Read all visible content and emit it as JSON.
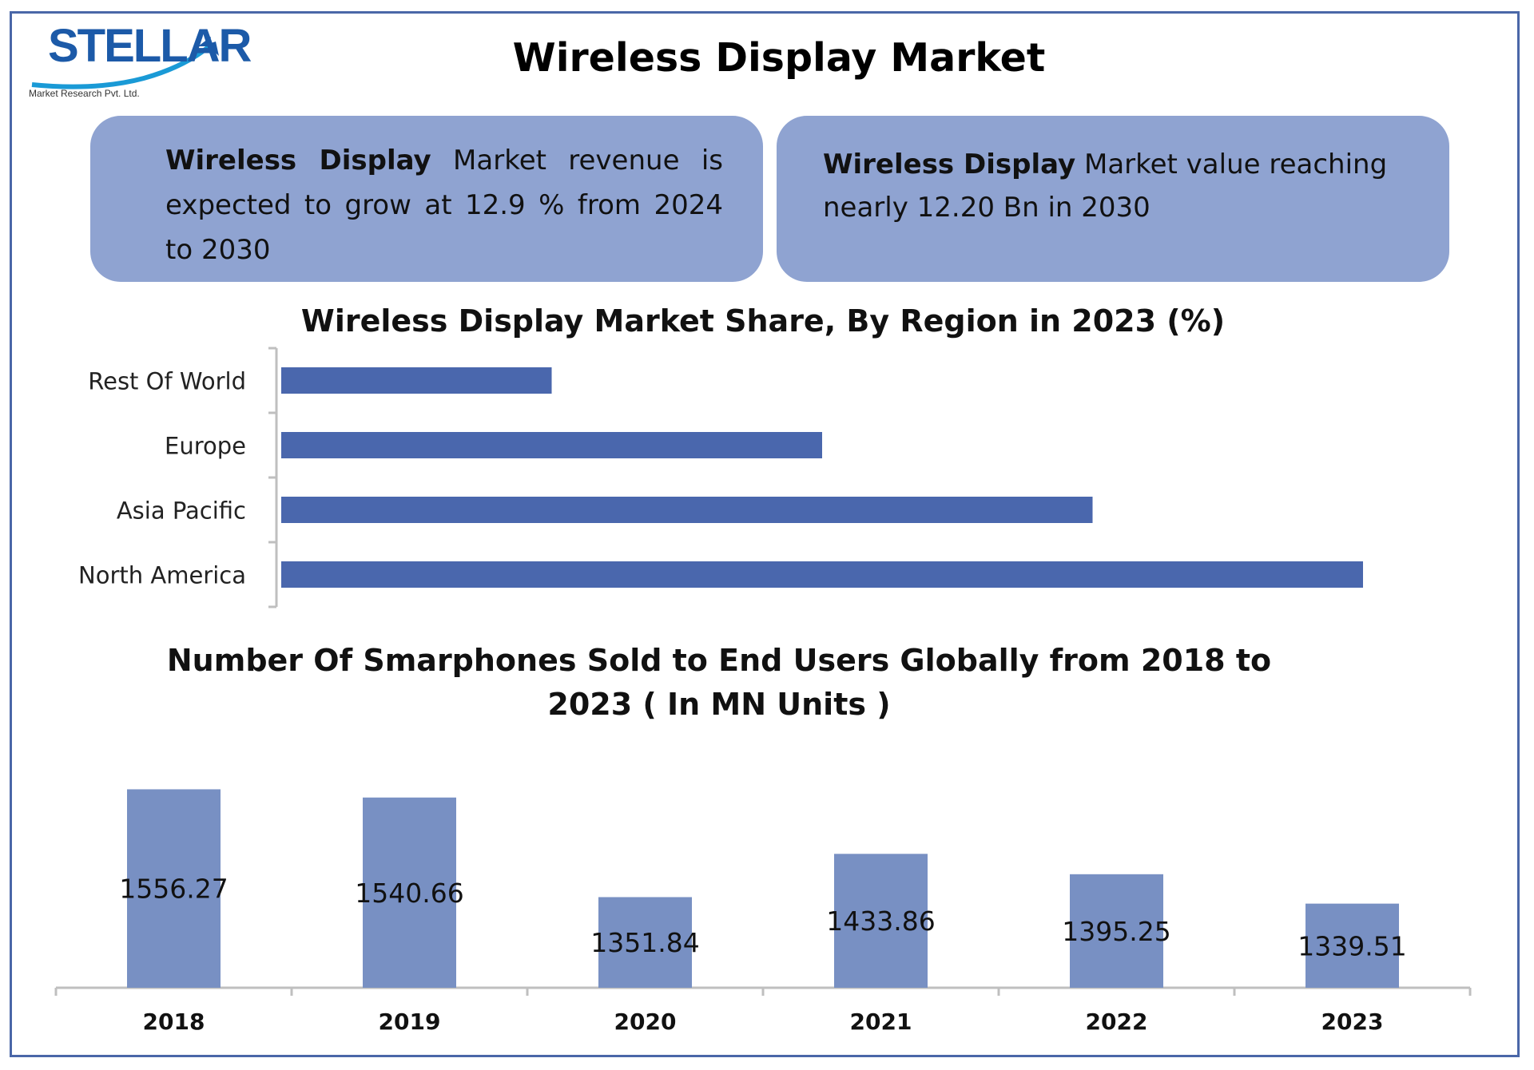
{
  "logo": {
    "word": "STELLAR",
    "sub": "Market Research Pvt. Ltd."
  },
  "title": "Wireless Display Market",
  "highlights": [
    {
      "bold": "Wireless Display",
      "text": " Market revenue is expected to grow at 12.9 % from 2024 to 2030"
    },
    {
      "bold": "Wireless Display",
      "text": " Market value reaching nearly 12.20 Bn in 2030"
    }
  ],
  "colors": {
    "frame": "#4a67a8",
    "highlight_box": "#8fa3d1",
    "region_bar": "#4a67ad",
    "units_bar": "#7890c3"
  },
  "chart_data": [
    {
      "type": "bar",
      "orientation": "horizontal",
      "title": "Wireless  Display Market Share, By Region in 2023 (%)",
      "categories": [
        "Rest Of World",
        "Europe",
        "Asia Pacific",
        "North America"
      ],
      "values": [
        10,
        20,
        30,
        40
      ],
      "xlim": [
        0,
        40
      ]
    },
    {
      "type": "bar",
      "title": "Number Of Smarphones Sold to End Users Globally from 2018 to 2023 ( In MN Units )",
      "categories": [
        "2018",
        "2019",
        "2020",
        "2021",
        "2022",
        "2023"
      ],
      "values": [
        1556.27,
        1540.66,
        1351.84,
        1433.86,
        1395.25,
        1339.51
      ],
      "data_labels": [
        "1556.27",
        "1540.66",
        "1351.84",
        "1433.86",
        "1395.25",
        "1339.51"
      ],
      "ylim": [
        1180,
        1560
      ]
    }
  ]
}
